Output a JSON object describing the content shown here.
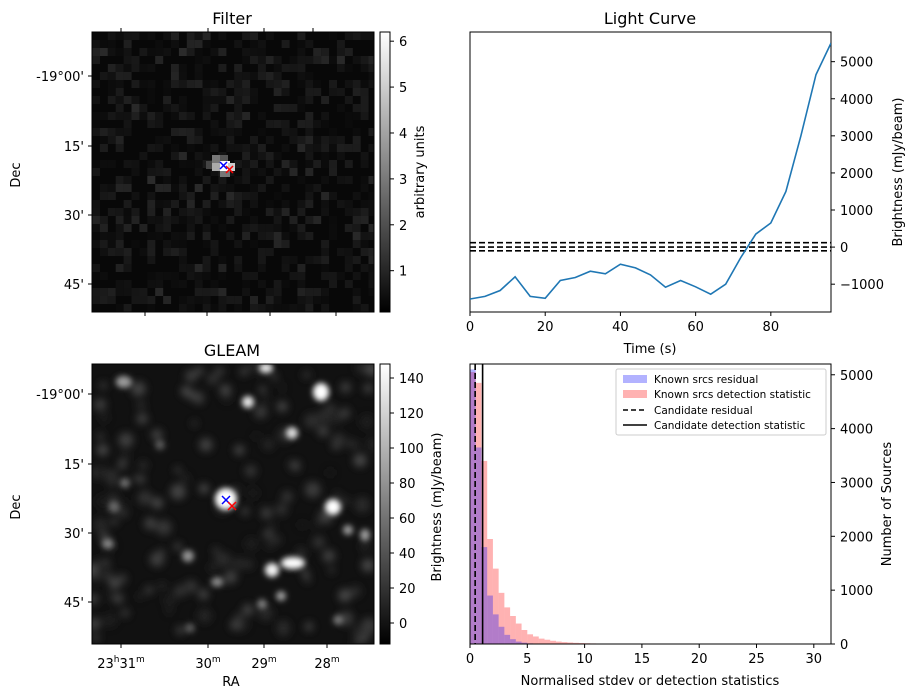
{
  "chart_data": [
    {
      "panel": "filter",
      "type": "heatmap",
      "title": "Filter",
      "ylabel": "Dec",
      "y_ticks": [
        "-19°00'",
        "15'",
        "30'",
        "45'"
      ],
      "colorbar": {
        "label": "arbitrary units",
        "ticks": [
          "1",
          "2",
          "3",
          "4",
          "5",
          "6"
        ],
        "range": [
          0.1,
          6.2
        ]
      },
      "colormap": "gray",
      "markers": [
        {
          "symbol": "x",
          "color": "#0000ff"
        },
        {
          "symbol": "x",
          "color": "#ff0000"
        }
      ]
    },
    {
      "panel": "light_curve",
      "type": "line",
      "title": "Light Curve",
      "xlabel": "Time (s)",
      "ylabel": "Brightness (mJy/beam)",
      "x_ticks": [
        "0",
        "20",
        "40",
        "60",
        "80"
      ],
      "y_ticks": [
        "−1000",
        "0",
        "1000",
        "2000",
        "3000",
        "4000",
        "5000"
      ],
      "xlim": [
        0,
        96
      ],
      "ylim": [
        -1750,
        5800
      ],
      "x": [
        0,
        4,
        8,
        12,
        16,
        20,
        24,
        28,
        32,
        36,
        40,
        44,
        48,
        52,
        56,
        60,
        64,
        68,
        72,
        76,
        80,
        84,
        88,
        92,
        96
      ],
      "values": [
        -1400,
        -1330,
        -1170,
        -800,
        -1330,
        -1380,
        -900,
        -820,
        -650,
        -720,
        -460,
        -560,
        -750,
        -1080,
        -900,
        -1070,
        -1270,
        -1000,
        -280,
        350,
        650,
        1500,
        3000,
        4650,
        5500
      ],
      "color": "#1f77b4",
      "hlines": {
        "values": [
          -100,
          0,
          120
        ],
        "style": "dashed",
        "color": "#000000"
      }
    },
    {
      "panel": "gleam",
      "type": "heatmap",
      "title": "GLEAM",
      "xlabel": "RA",
      "ylabel": "Dec",
      "x_ticks": [
        "23h31m",
        "30m",
        "29m",
        "28m"
      ],
      "y_ticks": [
        "-19°00'",
        "15'",
        "30'",
        "45'"
      ],
      "colorbar": {
        "label": "Brightness (mJy/beam)",
        "ticks": [
          "0",
          "20",
          "40",
          "60",
          "80",
          "100",
          "120",
          "140"
        ],
        "range": [
          -12,
          148
        ]
      },
      "colormap": "gray",
      "markers": [
        {
          "symbol": "x",
          "color": "#0000ff"
        },
        {
          "symbol": "x",
          "color": "#ff0000"
        }
      ]
    },
    {
      "panel": "histogram",
      "type": "bar",
      "xlabel": "Normalised stdev or detection statistics",
      "ylabel": "Number of Sources",
      "x_ticks": [
        "0",
        "5",
        "10",
        "15",
        "20",
        "25",
        "30"
      ],
      "y_ticks": [
        "0",
        "1000",
        "2000",
        "3000",
        "4000",
        "5000"
      ],
      "xlim": [
        0,
        31.5
      ],
      "ylim": [
        0,
        5200
      ],
      "bin_width": 0.5,
      "series": [
        {
          "name": "Known srcs residual",
          "color": "#0000ff",
          "alpha": 0.3,
          "values": [
            5100,
            3650,
            1800,
            900,
            550,
            320,
            170,
            90,
            45,
            25,
            12,
            6,
            3
          ]
        },
        {
          "name": "Known srcs detection statistic",
          "color": "#ff0000",
          "alpha": 0.3,
          "values": [
            5050,
            4850,
            3400,
            1950,
            1400,
            950,
            680,
            520,
            380,
            260,
            180,
            140,
            100,
            80,
            60,
            45,
            35,
            28,
            22,
            18,
            14,
            11,
            9,
            7,
            6,
            5,
            4,
            4,
            3,
            3,
            2,
            2,
            2,
            2,
            1,
            1,
            1,
            1,
            1,
            1,
            1,
            1,
            1,
            1,
            1,
            1,
            1,
            1,
            1,
            1,
            1,
            1,
            1,
            1,
            1,
            1,
            1,
            1,
            1,
            1
          ]
        }
      ],
      "vlines": [
        {
          "name": "Candidate residual",
          "value": 0.45,
          "style": "dashed",
          "color": "#000000"
        },
        {
          "name": "Candidate detection statistic",
          "value": 1.1,
          "style": "solid",
          "color": "#000000"
        }
      ],
      "legend": "top-right"
    }
  ]
}
